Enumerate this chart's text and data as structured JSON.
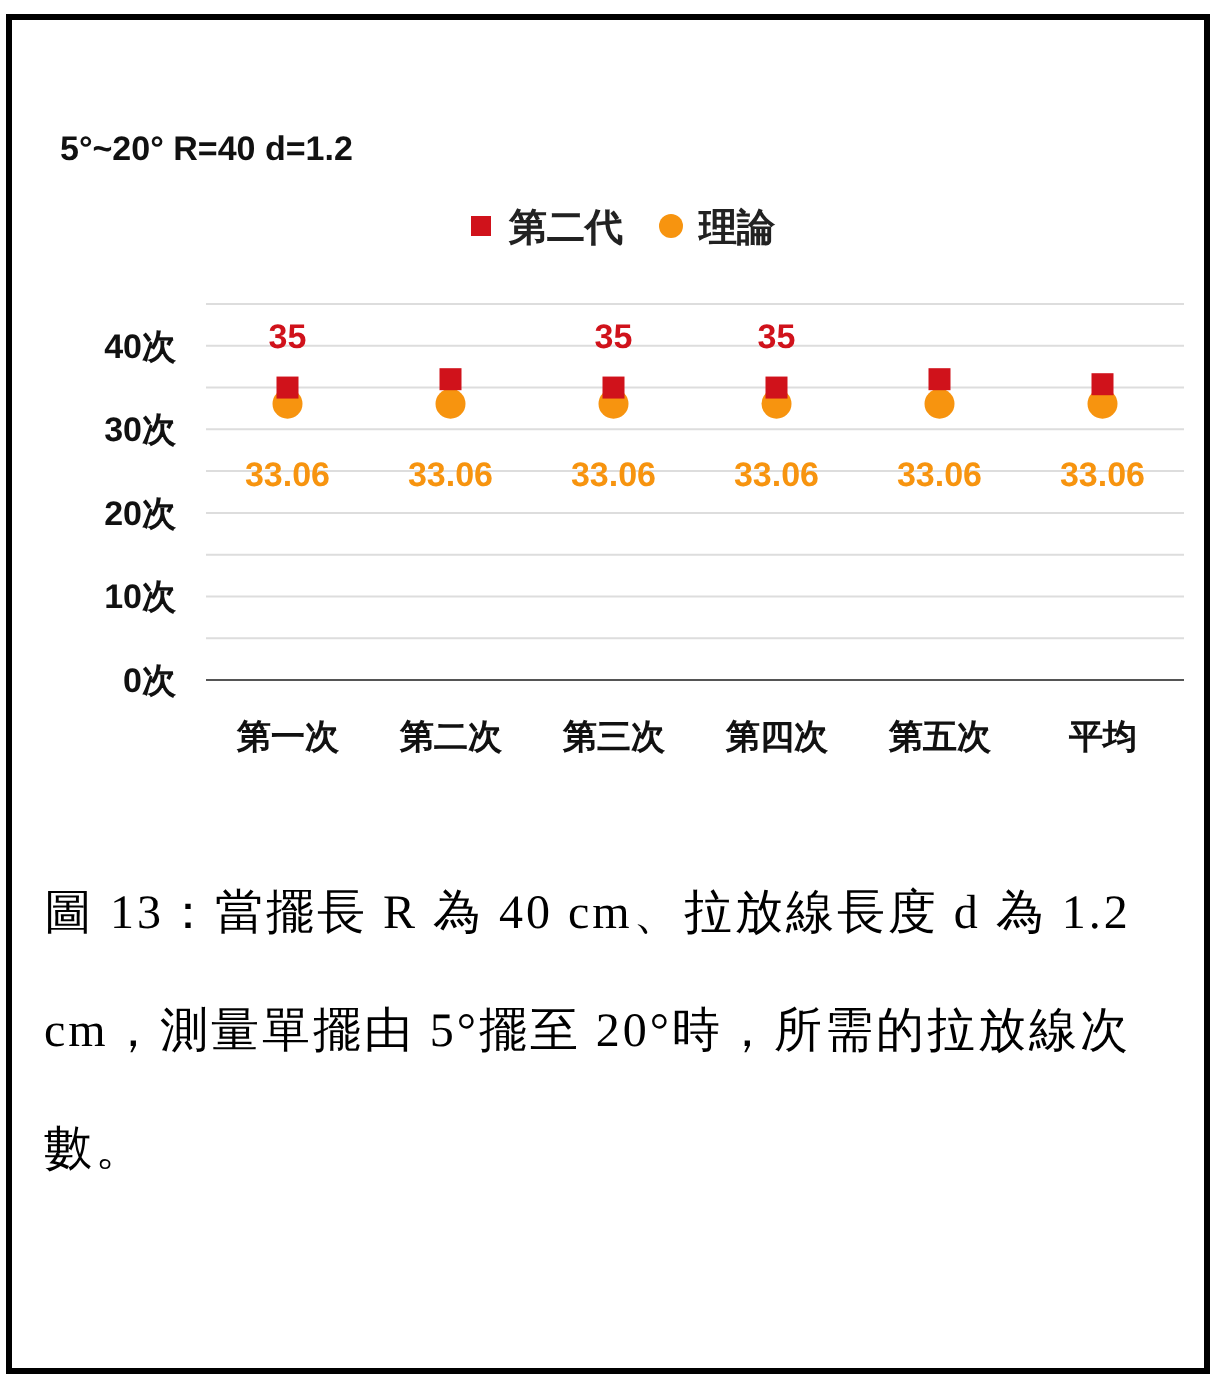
{
  "chart_data": {
    "type": "scatter",
    "title": "5°~20° R=40 d=1.2",
    "categories": [
      "第一次",
      "第二次",
      "第三次",
      "第四次",
      "第五次",
      "平均"
    ],
    "series": [
      {
        "name": "第二代",
        "color": "#d0121b",
        "marker": "square",
        "values": [
          35,
          36,
          35,
          35,
          36,
          35.4
        ],
        "value_labels": [
          "35",
          null,
          "35",
          "35",
          null,
          null
        ]
      },
      {
        "name": "理論",
        "color": "#f7940f",
        "marker": "circle",
        "values": [
          33.06,
          33.06,
          33.06,
          33.06,
          33.06,
          33.06
        ],
        "value_labels": [
          "33.06",
          "33.06",
          "33.06",
          "33.06",
          "33.06",
          "33.06"
        ]
      }
    ],
    "ylim": [
      0,
      45
    ],
    "yticks": [
      {
        "value": 0,
        "label": "0次"
      },
      {
        "value": 5,
        "label": null
      },
      {
        "value": 10,
        "label": "10次"
      },
      {
        "value": 15,
        "label": null
      },
      {
        "value": 20,
        "label": "20次"
      },
      {
        "value": 25,
        "label": null
      },
      {
        "value": 30,
        "label": "30次"
      },
      {
        "value": 35,
        "label": null
      },
      {
        "value": 40,
        "label": "40次"
      },
      {
        "value": 45,
        "label": null
      }
    ],
    "grid": "y",
    "legend": "top",
    "annotations": [
      "圖 13：當擺長 R 為 40 cm、拉放線長度 d 為 1.2 cm，測量單擺由 5°擺至 20°時，所需的拉放線次數。"
    ]
  }
}
